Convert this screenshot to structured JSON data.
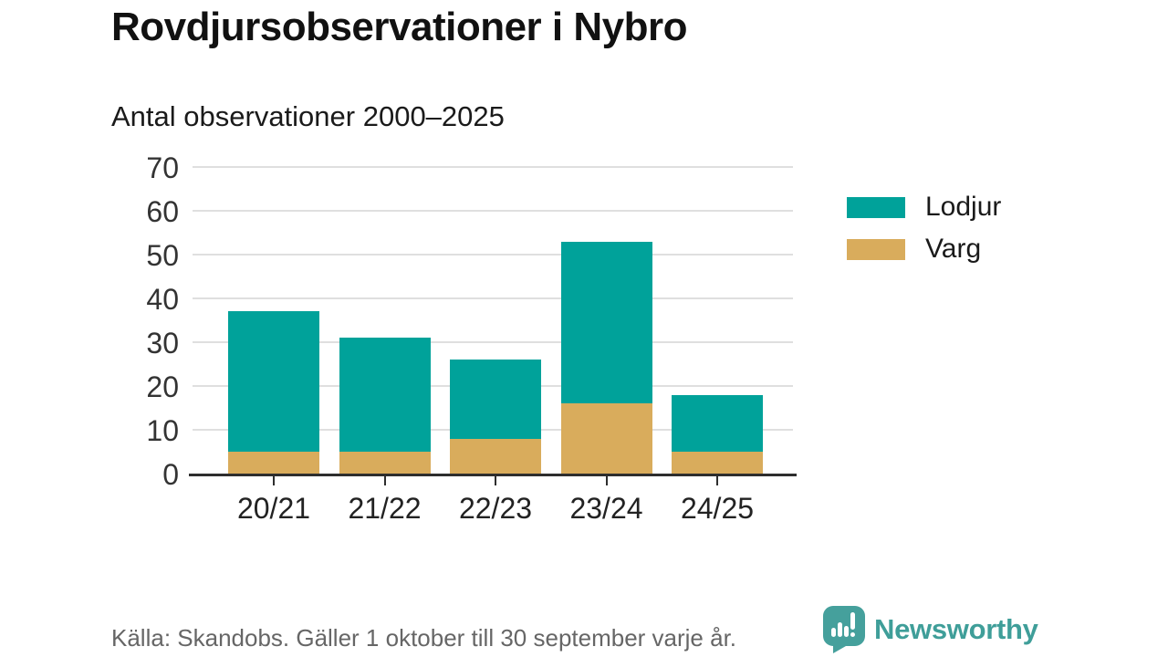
{
  "header": {
    "title": "Rovdjursobservationer i Nybro",
    "subtitle": "Antal observationer 2000–2025"
  },
  "chart_data": {
    "type": "bar",
    "stacked": true,
    "title": "Rovdjursobservationer i Nybro",
    "subtitle": "Antal observationer 2000–2025",
    "categories": [
      "20/21",
      "21/22",
      "22/23",
      "23/24",
      "24/25"
    ],
    "series": [
      {
        "name": "Lodjur",
        "color": "#00a29a",
        "values": [
          32,
          26,
          18,
          37,
          13
        ]
      },
      {
        "name": "Varg",
        "color": "#d9ac5c",
        "values": [
          5,
          5,
          8,
          16,
          5
        ]
      }
    ],
    "totals": [
      37,
      31,
      26,
      53,
      18
    ],
    "stack_bottom_to_top": [
      "Varg",
      "Lodjur"
    ],
    "xlabel": "",
    "ylabel": "",
    "ylim": [
      0,
      70
    ],
    "yticks": [
      0,
      10,
      20,
      30,
      40,
      50,
      60,
      70
    ],
    "grid": true,
    "legend_position": "right"
  },
  "legend": {
    "items": [
      {
        "label": "Lodjur",
        "color": "#00a29a"
      },
      {
        "label": "Varg",
        "color": "#d9ac5c"
      }
    ]
  },
  "footer": {
    "source": "Källa: Skandobs. Gäller 1 oktober till 30 september varje år.",
    "brand": "Newsworthy"
  },
  "colors": {
    "bar_teal": "#00a29a",
    "bar_gold": "#d9ac5c",
    "axis": "#2e2e2e",
    "gridline": "#dfdfdf",
    "text_dark": "#1a1a1a",
    "text_muted": "#666666",
    "brand_teal": "#3f9e99"
  }
}
